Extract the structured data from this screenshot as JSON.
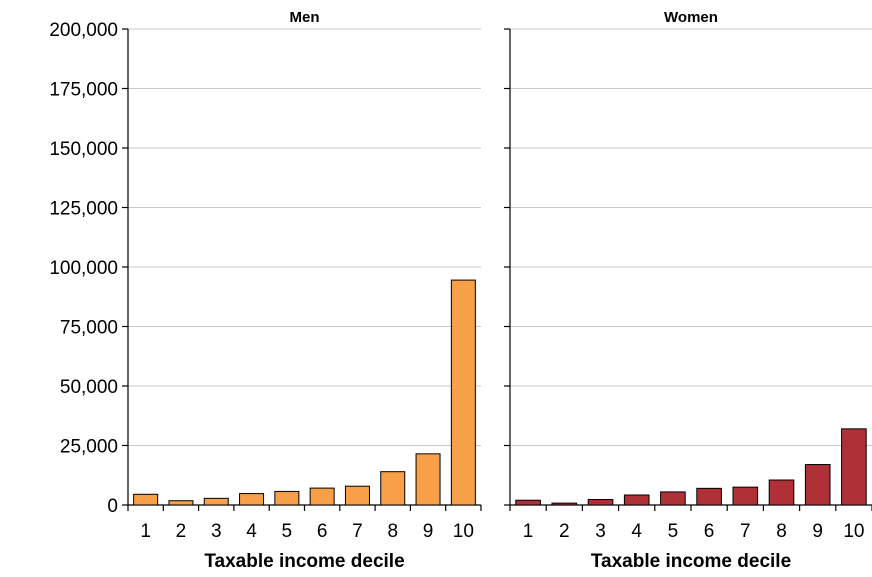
{
  "chart_data": {
    "type": "bar",
    "ylim": [
      0,
      200000
    ],
    "yticks": [
      "0",
      "25,000",
      "50,000",
      "75,000",
      "100,000",
      "125,000",
      "150,000",
      "175,000",
      "200,000"
    ],
    "ytick_values": [
      0,
      25000,
      50000,
      75000,
      100000,
      125000,
      150000,
      175000,
      200000
    ],
    "grid": true,
    "panels": [
      {
        "title": "Men",
        "xlabel": "Taxable income decile",
        "categories": [
          "1",
          "2",
          "3",
          "4",
          "5",
          "6",
          "7",
          "8",
          "9",
          "10"
        ],
        "values": [
          4500,
          1800,
          2800,
          4800,
          5700,
          7100,
          7900,
          14000,
          21500,
          94500
        ],
        "color": "#F8A048"
      },
      {
        "title": "Women",
        "xlabel": "Taxable income decile",
        "categories": [
          "1",
          "2",
          "3",
          "4",
          "5",
          "6",
          "7",
          "8",
          "9",
          "10"
        ],
        "values": [
          2000,
          800,
          2300,
          4200,
          5500,
          7000,
          7500,
          10500,
          17000,
          32000
        ],
        "color": "#B03038"
      }
    ]
  }
}
